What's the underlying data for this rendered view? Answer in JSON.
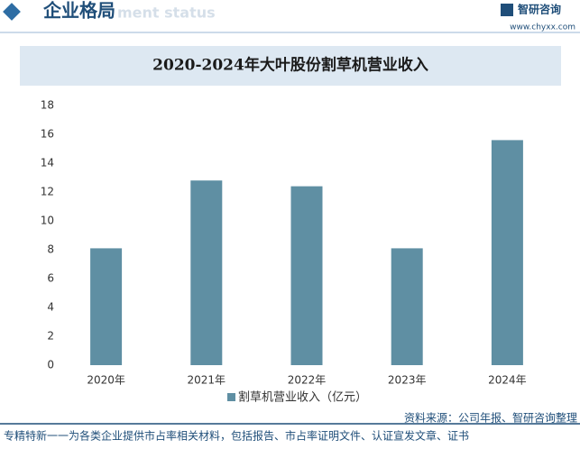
{
  "header": {
    "title": "企业格局",
    "subtitle": "ment status",
    "brand": "智研咨询",
    "url": "www.chyxx.com"
  },
  "chart_data": {
    "type": "bar",
    "title": "2020-2024年大叶股份割草机营业收入",
    "categories": [
      "2020年",
      "2021年",
      "2022年",
      "2023年",
      "2024年"
    ],
    "series": [
      {
        "name": "割草机营业收入（亿元）",
        "color": "#5f8fa3",
        "values": [
          8.1,
          12.8,
          12.4,
          8.1,
          15.6
        ]
      }
    ],
    "ylim": [
      0,
      18
    ],
    "yticks": [
      0,
      2,
      4,
      6,
      8,
      10,
      12,
      14,
      16,
      18
    ],
    "grid": false,
    "legend": "bottom"
  },
  "footer": {
    "source": "资料来源：公司年报、智研咨询整理",
    "note": "专精特新一一为各类企业提供市占率相关材料，包括报告、市占率证明文件、认证宣发文章、证书"
  }
}
